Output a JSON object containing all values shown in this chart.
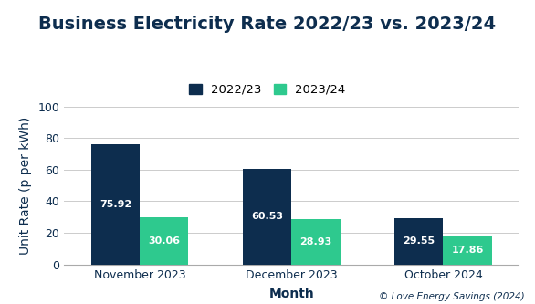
{
  "title": "Business Electricity Rate 2022/23 vs. 2023/24",
  "xlabel": "Month",
  "ylabel": "Unit Rate (p per kWh)",
  "categories": [
    "November 2023",
    "December 2023",
    "October 2024"
  ],
  "series": [
    {
      "label": "2022/23",
      "values": [
        75.92,
        60.53,
        29.55
      ],
      "color": "#0d2d4e"
    },
    {
      "label": "2023/24",
      "values": [
        30.06,
        28.93,
        17.86
      ],
      "color": "#2ec98e"
    }
  ],
  "ylim": [
    0,
    100
  ],
  "yticks": [
    0,
    20,
    40,
    60,
    80,
    100
  ],
  "bar_width": 0.32,
  "title_fontsize": 14,
  "axis_label_fontsize": 10,
  "tick_fontsize": 9,
  "legend_fontsize": 9.5,
  "value_label_fontsize": 8.0,
  "value_label_color": "#ffffff",
  "copyright_text": "© Love Energy Savings (2024)",
  "copyright_fontsize": 7.5,
  "background_color": "#ffffff",
  "grid_color": "#cccccc",
  "title_color": "#0d2d4e",
  "label_color": "#0d2d4e"
}
